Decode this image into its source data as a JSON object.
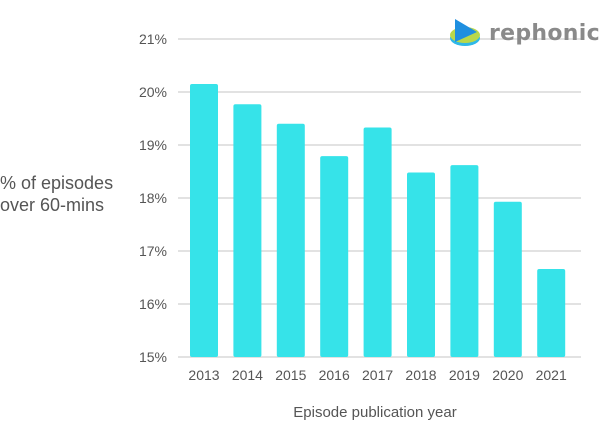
{
  "branding": {
    "logo_text": "rephonic",
    "logo_icon": "rephonic-play-disc-icon"
  },
  "colors": {
    "bar": "#36e3e9",
    "grid": "#d9d9d9",
    "text": "#555555"
  },
  "chart_data": {
    "type": "bar",
    "title": "",
    "xlabel": "Episode publication year",
    "ylabel": "% of episodes over 60-mins",
    "ylabel_lines": [
      "% of episodes",
      "over 60-mins"
    ],
    "categories": [
      "2013",
      "2014",
      "2015",
      "2016",
      "2017",
      "2018",
      "2019",
      "2020",
      "2021"
    ],
    "values": [
      20.15,
      19.77,
      19.4,
      18.79,
      19.33,
      18.48,
      18.62,
      17.93,
      16.66
    ],
    "ylim": [
      15,
      21
    ],
    "yticks": [
      "15%",
      "16%",
      "17%",
      "18%",
      "19%",
      "20%",
      "21%"
    ],
    "grid": true,
    "legend": null
  }
}
